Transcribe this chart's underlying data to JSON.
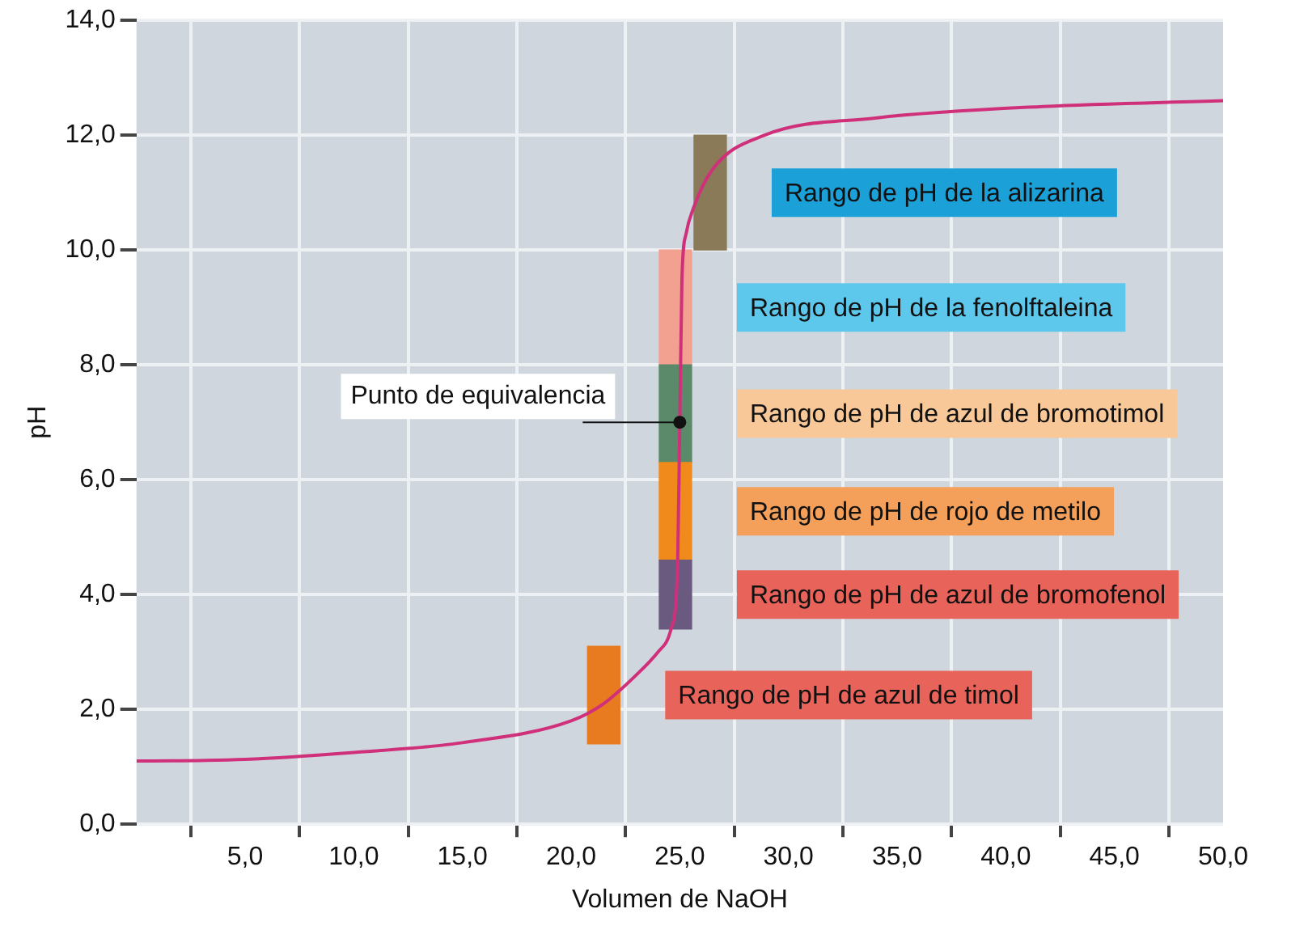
{
  "chart_data": {
    "type": "line",
    "xlabel": "Volumen de NaOH",
    "ylabel": "pH",
    "xlim": [
      0,
      50
    ],
    "xticks": [
      {
        "value": 5,
        "label": "5,0"
      },
      {
        "value": 10,
        "label": "10,0"
      },
      {
        "value": 15,
        "label": "15,0"
      },
      {
        "value": 20,
        "label": "20,0"
      },
      {
        "value": 25,
        "label": "25,0"
      },
      {
        "value": 30,
        "label": "30,0"
      },
      {
        "value": 35,
        "label": "35,0"
      },
      {
        "value": 40,
        "label": "40,0"
      },
      {
        "value": 45,
        "label": "45,0"
      },
      {
        "value": 50,
        "label": "50,0"
      }
    ],
    "ylim": [
      0,
      14
    ],
    "yticks": [
      {
        "value": 0,
        "label": "0,0"
      },
      {
        "value": 2,
        "label": "2,0"
      },
      {
        "value": 4,
        "label": "4,0"
      },
      {
        "value": 6,
        "label": "6,0"
      },
      {
        "value": 8,
        "label": "8,0"
      },
      {
        "value": 10,
        "label": "10,0"
      },
      {
        "value": 12,
        "label": "12,0"
      },
      {
        "value": 14,
        "label": "14,0"
      }
    ],
    "grid": true,
    "legend": false,
    "marker": "none",
    "line_style": "solid",
    "series": [
      {
        "color": "#d0307a",
        "x": [
          0,
          5,
          10,
          15,
          20,
          21.5,
          23,
          24,
          24.6,
          24.9,
          25,
          25.1,
          25.3,
          25.6,
          26.5,
          28.9,
          34,
          41.7,
          50
        ],
        "values": [
          1.1,
          1.13,
          1.25,
          1.42,
          1.8,
          2.1,
          2.6,
          3.0,
          3.4,
          4.5,
          7.0,
          9.5,
          10.3,
          10.7,
          11.4,
          12.0,
          12.3,
          12.5,
          12.6
        ]
      },
      {
        "type": "bar",
        "name": "Rango de pH de azul de timol",
        "color": "#e87a20",
        "x": [
          21.5
        ],
        "base": [
          1.4
        ],
        "values": [
          1.7
        ]
      },
      {
        "type": "bar",
        "name": "Rango de pH de azul de bromofenol",
        "color": "#6a5a80",
        "x": [
          24.8
        ],
        "base": [
          3.4
        ],
        "values": [
          1.2
        ]
      },
      {
        "type": "bar",
        "name": "Rango de pH de rojo de metilo",
        "color": "#f08a1a",
        "x": [
          24.8
        ],
        "base": [
          4.6
        ],
        "values": [
          1.7
        ]
      },
      {
        "type": "bar",
        "name": "Rango de pH de azul de bromotimol",
        "color": "#5a8a6a",
        "x": [
          24.8
        ],
        "base": [
          6.3
        ],
        "values": [
          1.7
        ]
      },
      {
        "type": "bar",
        "name": "Rango de pH de la fenolftaleina",
        "color": "#f2a090",
        "x": [
          24.8
        ],
        "base": [
          8.0
        ],
        "values": [
          2.0
        ]
      },
      {
        "type": "bar",
        "name": "Rango de pH de la alizarina",
        "color": "#8a7a58",
        "x": [
          26.4
        ],
        "base": [
          10.0
        ],
        "values": [
          2.0
        ]
      }
    ],
    "annotations": [
      {
        "text": "Punto de equivalencia",
        "x": 25,
        "y": 7.0
      }
    ]
  }
}
